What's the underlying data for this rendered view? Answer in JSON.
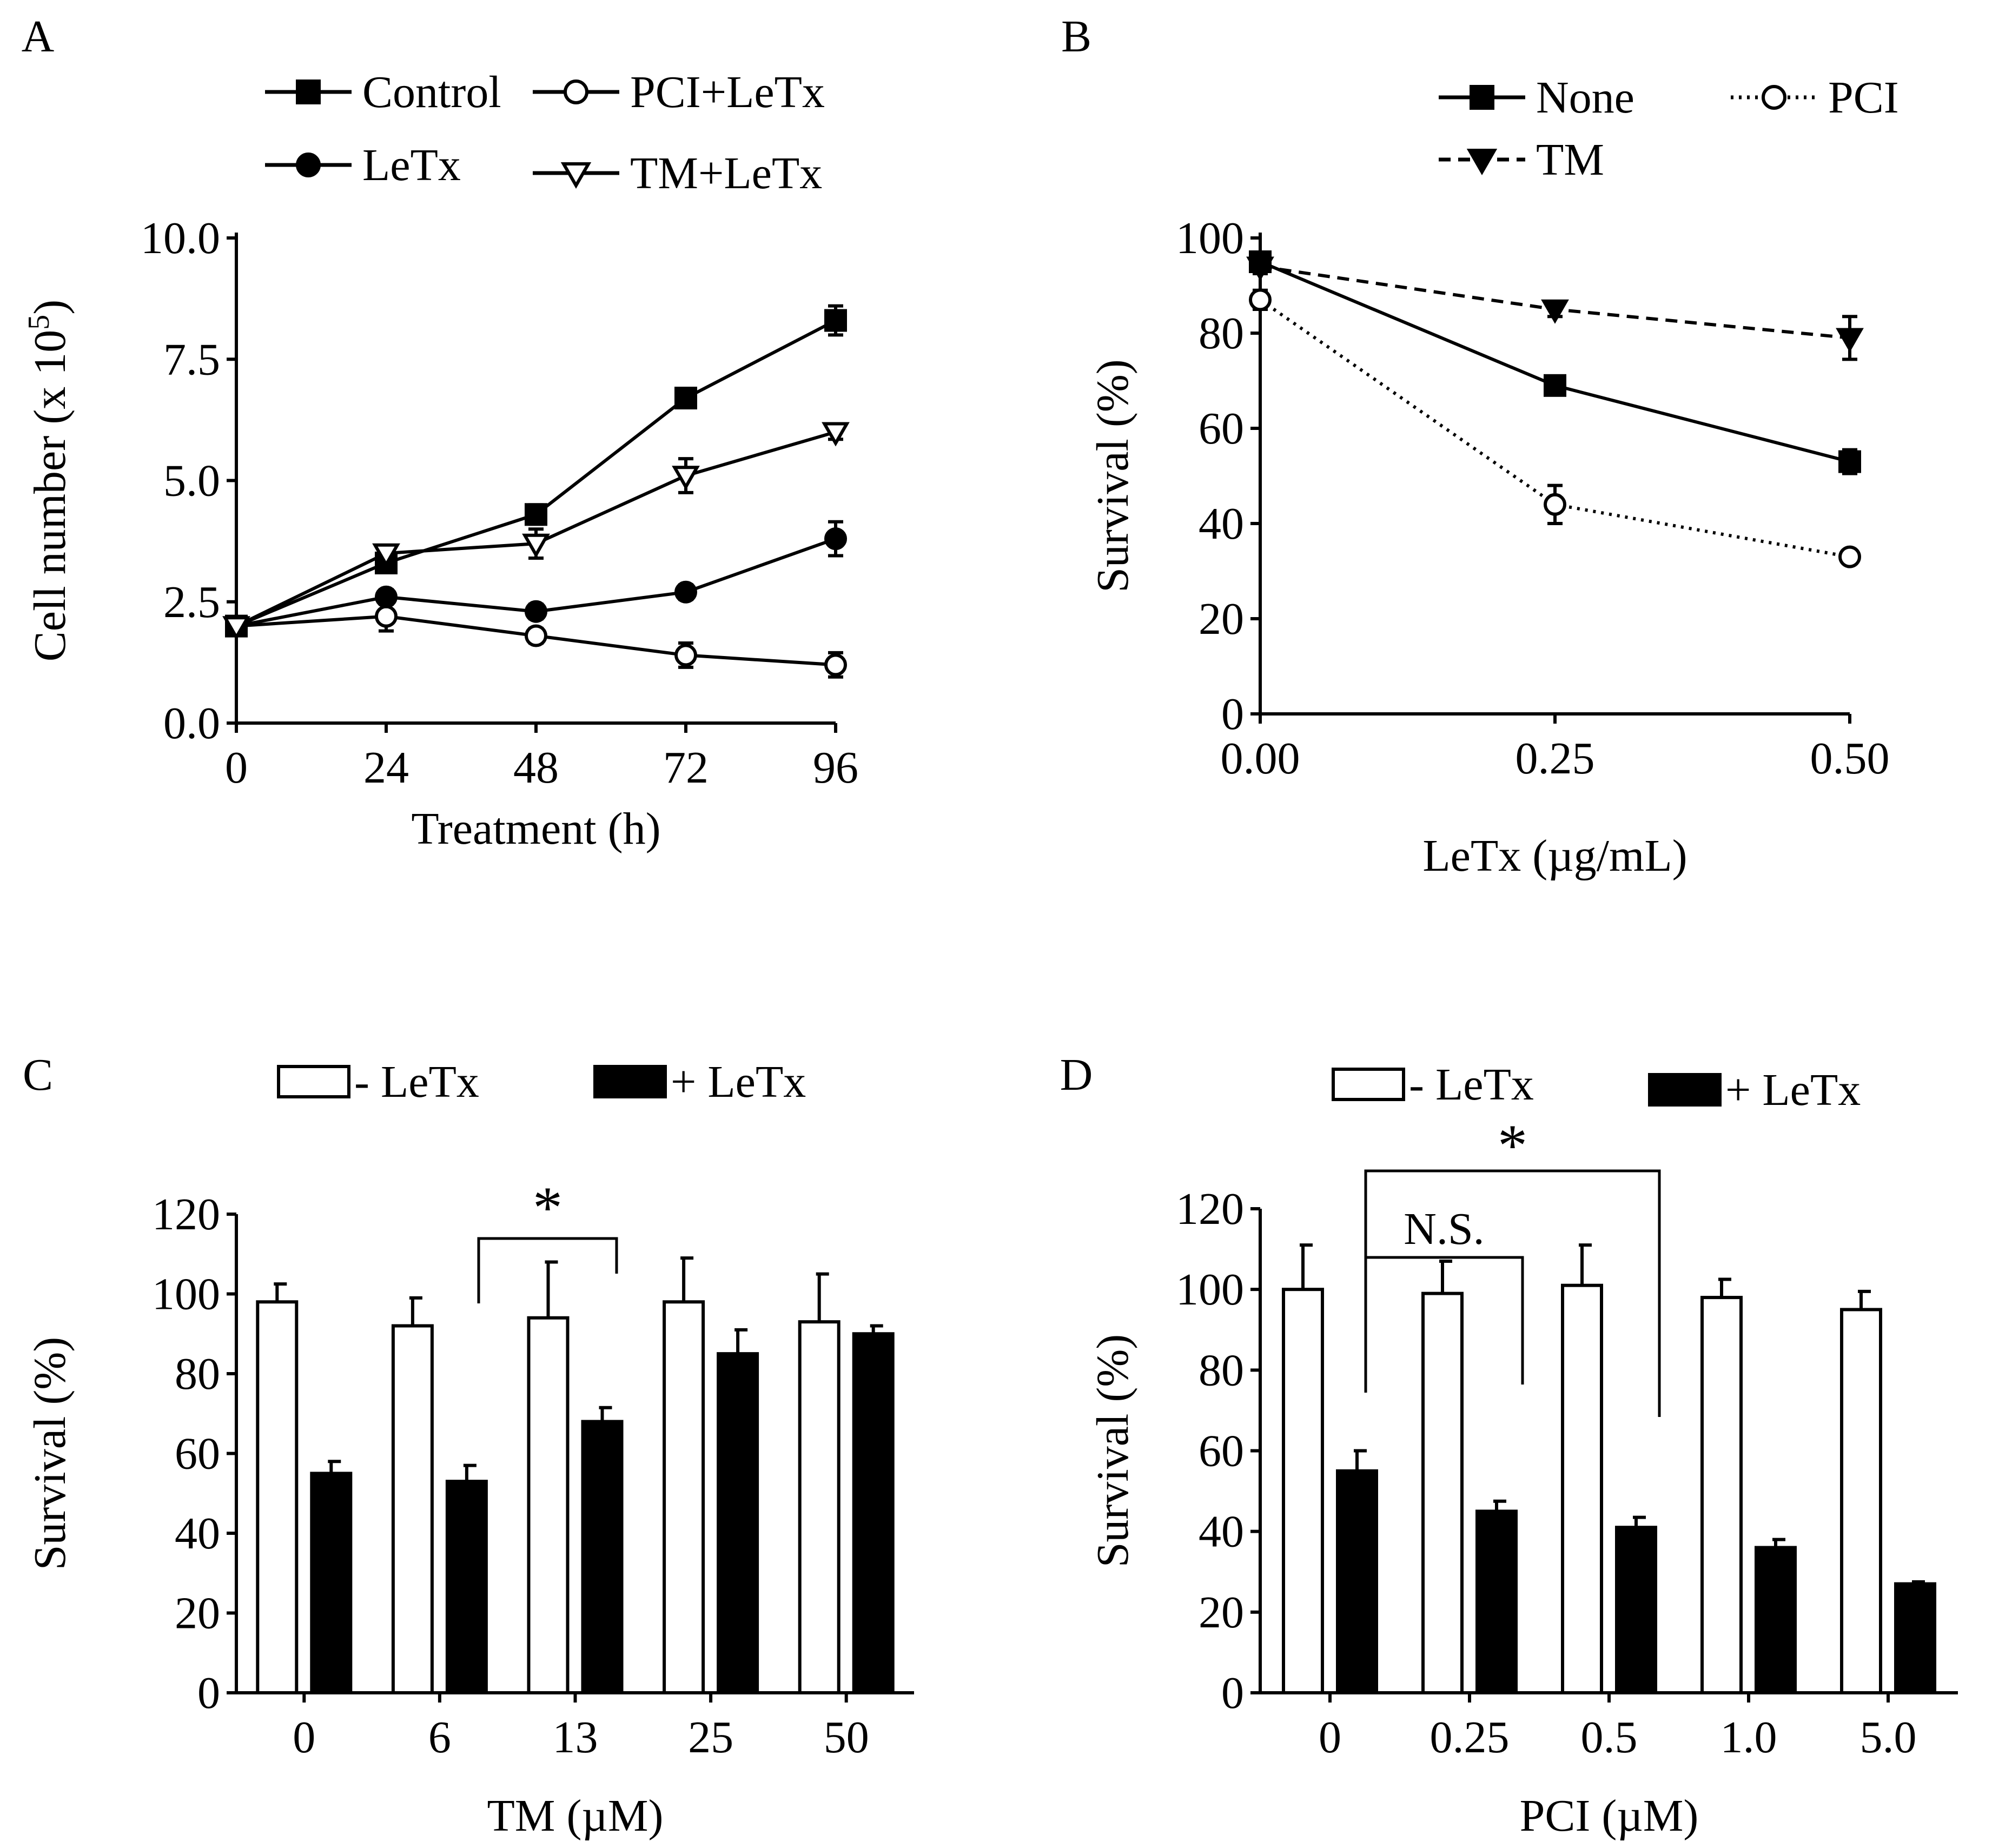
{
  "panels": {
    "A": {
      "letter": "A"
    },
    "B": {
      "letter": "B"
    },
    "C": {
      "letter": "C"
    },
    "D": {
      "letter": "D"
    }
  },
  "chart_data": [
    {
      "panel": "A",
      "type": "line",
      "title": "",
      "xlabel": "Treatment (h)",
      "ylabel": "Cell number (x 10",
      "ylabel_sup": "5",
      "ylabel_end": ")",
      "x": [
        0,
        24,
        48,
        72,
        96
      ],
      "xticks": [
        "0",
        "24",
        "48",
        "72",
        "96"
      ],
      "xlim": [
        0,
        96
      ],
      "ylim": [
        0,
        10
      ],
      "yticks": [
        "0.0",
        "2.5",
        "5.0",
        "7.5",
        "10.0"
      ],
      "yticks_values": [
        0,
        2.5,
        5,
        7.5,
        10
      ],
      "series": [
        {
          "name": "Control",
          "marker": "square",
          "fill": "black",
          "line": "solid",
          "values": [
            2.0,
            3.3,
            4.3,
            6.7,
            8.3
          ],
          "errors": [
            0.1,
            0.15,
            0.2,
            0.15,
            0.3
          ]
        },
        {
          "name": "PCI+LeTx",
          "marker": "circle",
          "fill": "white",
          "line": "solid",
          "values": [
            2.0,
            2.2,
            1.8,
            1.4,
            1.2
          ],
          "errors": [
            0.1,
            0.3,
            0.15,
            0.25,
            0.25
          ]
        },
        {
          "name": "LeTx",
          "marker": "circle",
          "fill": "black",
          "line": "solid",
          "values": [
            2.0,
            2.6,
            2.3,
            2.7,
            3.8
          ],
          "errors": [
            0.1,
            0.15,
            0.15,
            0.15,
            0.35
          ]
        },
        {
          "name": "TM+LeTx",
          "marker": "triangle-down",
          "fill": "white",
          "line": "solid",
          "values": [
            2.0,
            3.5,
            3.7,
            5.1,
            6.0
          ],
          "errors": [
            0.1,
            0.15,
            0.3,
            0.35,
            0.15
          ]
        }
      ],
      "legend": "top"
    },
    {
      "panel": "B",
      "type": "line",
      "title": "",
      "xlabel": "LeTx (µg/mL)",
      "ylabel": "Survival (%)",
      "x": [
        0.0,
        0.25,
        0.5
      ],
      "xticks": [
        "0.00",
        "0.25",
        "0.50"
      ],
      "xticks_values": [
        0,
        0.25,
        0.5
      ],
      "xlim": [
        0,
        0.5
      ],
      "ylim": [
        0,
        100
      ],
      "yticks": [
        "0",
        "20",
        "40",
        "60",
        "80",
        "100"
      ],
      "yticks_values": [
        0,
        20,
        40,
        60,
        80,
        100
      ],
      "series": [
        {
          "name": "None",
          "marker": "square",
          "fill": "black",
          "line": "solid",
          "values": [
            95,
            69,
            53
          ],
          "errors": [
            2,
            1.5,
            2.5
          ]
        },
        {
          "name": "PCI",
          "marker": "circle",
          "fill": "white",
          "line": "dotted",
          "values": [
            87,
            44,
            33
          ],
          "errors": [
            2,
            4,
            1
          ]
        },
        {
          "name": "TM",
          "marker": "triangle-down",
          "fill": "black",
          "line": "dashed",
          "values": [
            94,
            85,
            79
          ],
          "errors": [
            1.5,
            1.5,
            4.5
          ]
        }
      ],
      "legend": "top"
    },
    {
      "panel": "C",
      "type": "bar",
      "title": "",
      "xlabel": "TM (µM)",
      "ylabel": "Survival (%)",
      "categories": [
        "0",
        "6",
        "13",
        "25",
        "50"
      ],
      "ylim": [
        0,
        120
      ],
      "yticks": [
        "0",
        "20",
        "40",
        "60",
        "80",
        "100",
        "120"
      ],
      "yticks_values": [
        0,
        20,
        40,
        60,
        80,
        100,
        120
      ],
      "series": [
        {
          "name": "- LeTx",
          "fill": "white",
          "values": [
            98,
            92,
            94,
            98,
            93
          ],
          "errors": [
            4.5,
            7,
            14,
            11,
            12
          ]
        },
        {
          "name": "+ LeTx",
          "fill": "black",
          "values": [
            55,
            53,
            68,
            85,
            90
          ],
          "errors": [
            3,
            4,
            3.5,
            6,
            2
          ]
        }
      ],
      "annotations": [
        {
          "label": "*",
          "from_category": 1,
          "to_category": 2
        }
      ],
      "legend": "top"
    },
    {
      "panel": "D",
      "type": "bar",
      "title": "",
      "xlabel": "PCI (µM)",
      "ylabel": "Survival (%)",
      "categories": [
        "0",
        "0.25",
        "0.5",
        "1.0",
        "5.0"
      ],
      "ylim": [
        0,
        120
      ],
      "yticks": [
        "0",
        "20",
        "40",
        "60",
        "80",
        "100",
        "120"
      ],
      "yticks_values": [
        0,
        20,
        40,
        60,
        80,
        100,
        120
      ],
      "series": [
        {
          "name": "- LeTx",
          "fill": "white",
          "values": [
            100,
            99,
            101,
            98,
            95
          ],
          "errors": [
            11,
            8,
            10,
            4.5,
            4.5
          ]
        },
        {
          "name": "+ LeTx",
          "fill": "black",
          "values": [
            55,
            45,
            41,
            36,
            27
          ],
          "errors": [
            5,
            2.5,
            2.5,
            2,
            0.5
          ]
        }
      ],
      "annotations": [
        {
          "label": "N.S.",
          "from_category": 0,
          "to_category": 1
        },
        {
          "label": "*",
          "from_category": 0,
          "to_category": 2
        }
      ],
      "legend": "top"
    }
  ]
}
